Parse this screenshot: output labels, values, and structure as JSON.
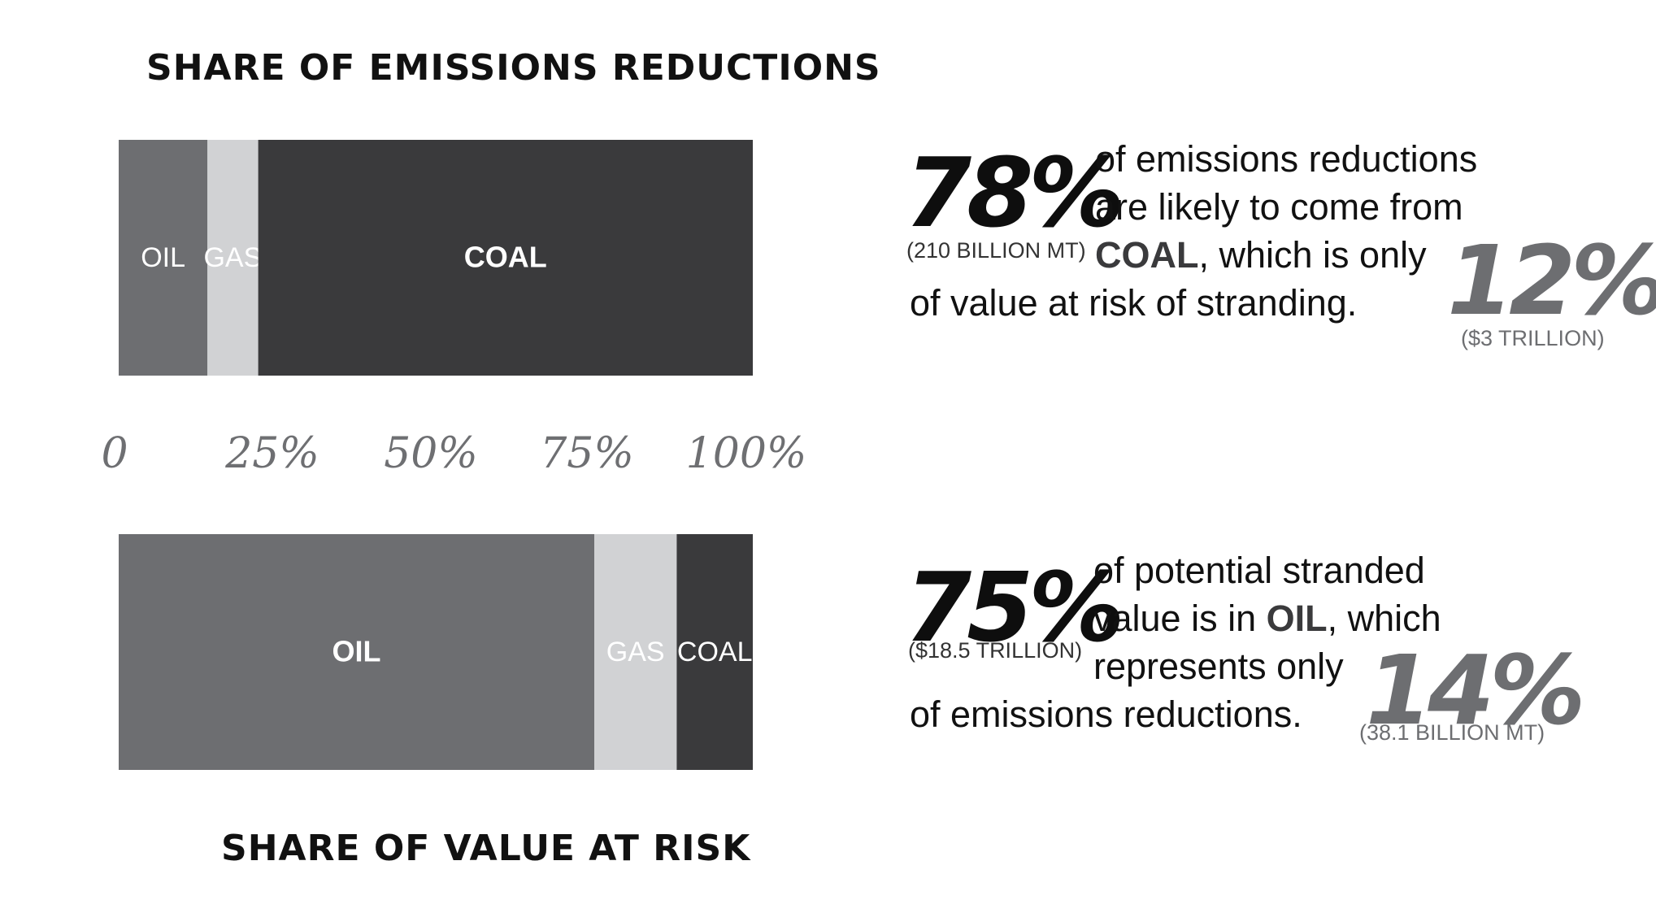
{
  "chart_data": [
    {
      "type": "bar",
      "orientation": "horizontal",
      "stacked": true,
      "title": "SHARE OF EMISSIONS REDUCTIONS",
      "categories": [
        "OIL",
        "GAS",
        "COAL"
      ],
      "values": [
        14,
        8,
        78
      ],
      "unit": "%",
      "xlim": [
        0,
        100
      ],
      "ticks": [
        "0",
        "25%",
        "50%",
        "75%",
        "100%"
      ]
    },
    {
      "type": "bar",
      "orientation": "horizontal",
      "stacked": true,
      "title": "SHARE OF VALUE AT RISK",
      "categories": [
        "OIL",
        "GAS",
        "COAL"
      ],
      "values": [
        75,
        13,
        12
      ],
      "unit": "%",
      "xlim": [
        0,
        100
      ]
    }
  ],
  "colors": {
    "OIL": "#6d6e71",
    "GAS": "#d1d2d4",
    "COAL": "#3a3a3c"
  },
  "label_colors": {
    "OIL": "#ffffff",
    "GAS": "#ffffff",
    "COAL": "#ffffff"
  },
  "callouts": {
    "coal": {
      "big": "78%",
      "big_sub": "(210 BILLION MT)",
      "line1": "of emissions reductions",
      "line2": "are likely to come from",
      "line3_strong": "COAL",
      "line3_rest": ", which is only",
      "line4": "of value at risk of stranding.",
      "small": "12%",
      "small_sub": "($3 TRILLION)"
    },
    "oil": {
      "big": "75%",
      "big_sub": "($18.5 TRILLION)",
      "line1": "of potential stranded",
      "line2_pre": "value is in ",
      "line2_strong": "OIL",
      "line2_post": ", which",
      "line3": "represents only",
      "line4": "of emissions reductions.",
      "small": "14%",
      "small_sub": "(38.1 BILLION MT)"
    }
  }
}
